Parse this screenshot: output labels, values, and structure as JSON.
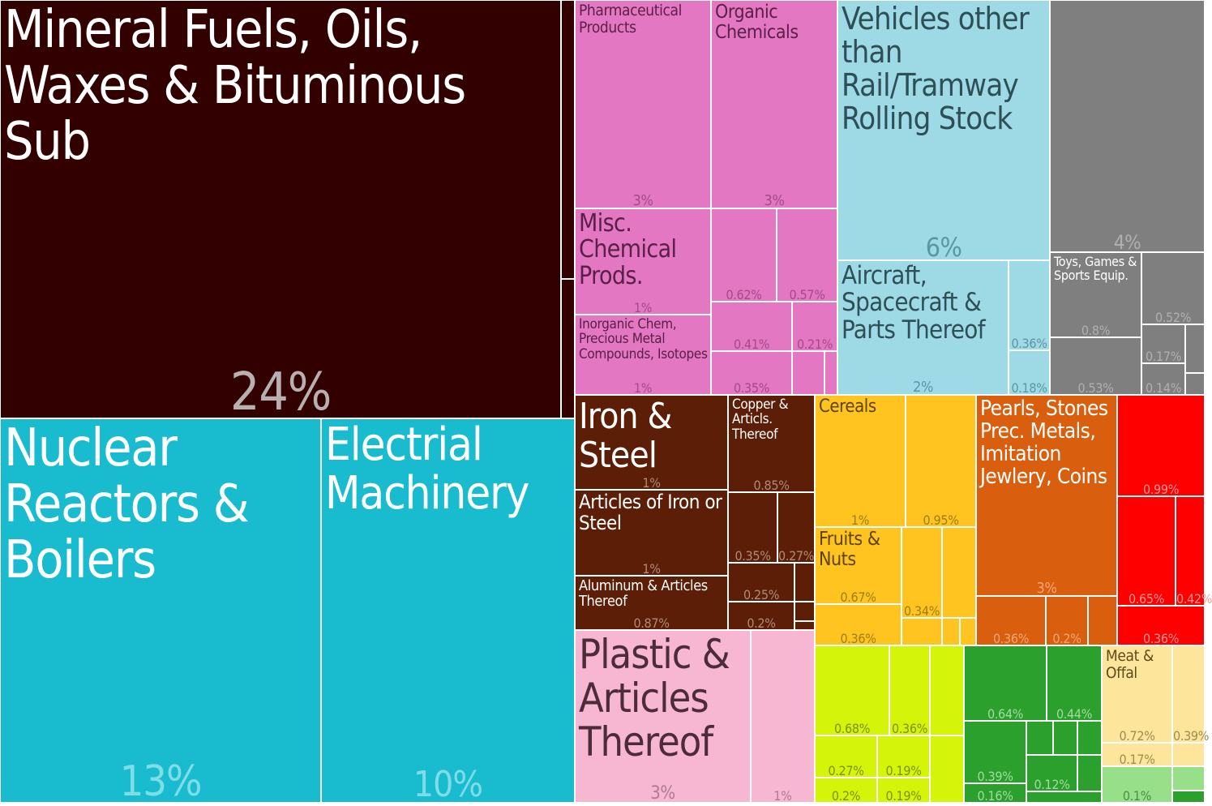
{
  "chart_data": {
    "type": "treemap",
    "cells": [
      {
        "name": "Mineral Fuels, Oils, Waxes & Bituminous Sub",
        "value": "24%",
        "color": "#330000",
        "text": "#ffffff",
        "pct": "#b8b0b0",
        "fs": 64,
        "ps": 64
      },
      {
        "name": "",
        "value": "",
        "color": "#330000",
        "text": "#ffffff",
        "pct": "#b8b0b0",
        "fs": 10,
        "ps": 10
      },
      {
        "name": "",
        "value": "",
        "color": "#330000",
        "text": "#ffffff",
        "pct": "#b8b0b0",
        "fs": 10,
        "ps": 10
      },
      {
        "name": "Nuclear Reactors & Boilers",
        "value": "13%",
        "color": "#19bccf",
        "text": "#ffffff",
        "pct": "#7fdde7",
        "fs": 64,
        "ps": 52
      },
      {
        "name": "Electrial Machinery",
        "value": "10%",
        "color": "#19bccf",
        "text": "#ffffff",
        "pct": "#7fdde7",
        "fs": 56,
        "ps": 44
      },
      {
        "name": "Pharmaceutical Products",
        "value": "3%",
        "color": "#e377c2",
        "text": "#5a2048",
        "pct": "#a34a88",
        "fs": 19,
        "ps": 18
      },
      {
        "name": "Organic Chemicals",
        "value": "3%",
        "color": "#e377c2",
        "text": "#5a2048",
        "pct": "#a34a88",
        "fs": 23,
        "ps": 18
      },
      {
        "name": "Misc. Chemical Prods.",
        "value": "1%",
        "color": "#e377c2",
        "text": "#5a2048",
        "pct": "#a34a88",
        "fs": 30,
        "ps": 16
      },
      {
        "name": "",
        "value": "0.62%",
        "color": "#e377c2",
        "text": "#5a2048",
        "pct": "#a34a88",
        "fs": 10,
        "ps": 16
      },
      {
        "name": "",
        "value": "0.57%",
        "color": "#e377c2",
        "text": "#5a2048",
        "pct": "#a34a88",
        "fs": 10,
        "ps": 16
      },
      {
        "name": "Inorganic Chem, Precious Metal Compounds, Isotopes",
        "value": "1%",
        "color": "#e377c2",
        "text": "#5a2048",
        "pct": "#a34a88",
        "fs": 17,
        "ps": 16
      },
      {
        "name": "",
        "value": "0.41%",
        "color": "#e377c2",
        "text": "#5a2048",
        "pct": "#a34a88",
        "fs": 10,
        "ps": 16
      },
      {
        "name": "",
        "value": "0.21%",
        "color": "#e377c2",
        "text": "#5a2048",
        "pct": "#a34a88",
        "fs": 10,
        "ps": 16
      },
      {
        "name": "",
        "value": "0.35%",
        "color": "#e377c2",
        "text": "#5a2048",
        "pct": "#a34a88",
        "fs": 10,
        "ps": 16
      },
      {
        "name": "",
        "value": "",
        "color": "#e377c2",
        "text": "#5a2048",
        "pct": "#a34a88",
        "fs": 10,
        "ps": 10
      },
      {
        "name": "",
        "value": "",
        "color": "#e377c2",
        "text": "#5a2048",
        "pct": "#a34a88",
        "fs": 10,
        "ps": 10
      },
      {
        "name": "Vehicles other than Rail/Tramway Rolling Stock",
        "value": "6%",
        "color": "#9edae5",
        "text": "#2e4f56",
        "pct": "#5a97a2",
        "fs": 38,
        "ps": 32
      },
      {
        "name": "Aircraft, Spacecraft & Parts Thereof",
        "value": "2%",
        "color": "#9edae5",
        "text": "#2e4f56",
        "pct": "#5a97a2",
        "fs": 31,
        "ps": 18
      },
      {
        "name": "",
        "value": "0.36%",
        "color": "#9edae5",
        "text": "#2e4f56",
        "pct": "#5a97a2",
        "fs": 10,
        "ps": 16
      },
      {
        "name": "",
        "value": "0.18%",
        "color": "#9edae5",
        "text": "#2e4f56",
        "pct": "#5a97a2",
        "fs": 10,
        "ps": 16
      },
      {
        "name": "",
        "value": "4%",
        "color": "#7f7f7f",
        "text": "#ffffff",
        "pct": "#b0b0b0",
        "fs": 10,
        "ps": 24
      },
      {
        "name": "Toys, Games & Sports Equip.",
        "value": "0.8%",
        "color": "#7f7f7f",
        "text": "#ffffff",
        "pct": "#b0b0b0",
        "fs": 16,
        "ps": 16
      },
      {
        "name": "",
        "value": "0.52%",
        "color": "#7f7f7f",
        "text": "#ffffff",
        "pct": "#b0b0b0",
        "fs": 10,
        "ps": 16
      },
      {
        "name": "",
        "value": "0.53%",
        "color": "#7f7f7f",
        "text": "#ffffff",
        "pct": "#b0b0b0",
        "fs": 10,
        "ps": 16
      },
      {
        "name": "",
        "value": "0.17%",
        "color": "#7f7f7f",
        "text": "#ffffff",
        "pct": "#b0b0b0",
        "fs": 10,
        "ps": 16
      },
      {
        "name": "",
        "value": "0.14%",
        "color": "#7f7f7f",
        "text": "#ffffff",
        "pct": "#b0b0b0",
        "fs": 10,
        "ps": 16
      },
      {
        "name": "",
        "value": "",
        "color": "#7f7f7f",
        "text": "#ffffff",
        "pct": "#b0b0b0",
        "fs": 10,
        "ps": 10
      },
      {
        "name": "",
        "value": "",
        "color": "#7f7f7f",
        "text": "#ffffff",
        "pct": "#b0b0b0",
        "fs": 10,
        "ps": 10
      },
      {
        "name": "Iron & Steel",
        "value": "1%",
        "color": "#5c1e06",
        "text": "#ffffff",
        "pct": "#b08a78",
        "fs": 44,
        "ps": 16
      },
      {
        "name": "Copper & Articls. Thereof",
        "value": "0.85%",
        "color": "#5c1e06",
        "text": "#ffffff",
        "pct": "#b08a78",
        "fs": 17,
        "ps": 16
      },
      {
        "name": "Articles of Iron or Steel",
        "value": "1%",
        "color": "#5c1e06",
        "text": "#ffffff",
        "pct": "#b08a78",
        "fs": 24,
        "ps": 16
      },
      {
        "name": "",
        "value": "0.35%",
        "color": "#5c1e06",
        "text": "#ffffff",
        "pct": "#b08a78",
        "fs": 10,
        "ps": 16
      },
      {
        "name": "",
        "value": "0.27%",
        "color": "#5c1e06",
        "text": "#ffffff",
        "pct": "#b08a78",
        "fs": 10,
        "ps": 16
      },
      {
        "name": "Aluminum & Articles Thereof",
        "value": "0.87%",
        "color": "#5c1e06",
        "text": "#ffffff",
        "pct": "#b08a78",
        "fs": 18,
        "ps": 16
      },
      {
        "name": "",
        "value": "0.25%",
        "color": "#5c1e06",
        "text": "#ffffff",
        "pct": "#b08a78",
        "fs": 10,
        "ps": 16
      },
      {
        "name": "",
        "value": "0.2%",
        "color": "#5c1e06",
        "text": "#ffffff",
        "pct": "#b08a78",
        "fs": 10,
        "ps": 16
      },
      {
        "name": "",
        "value": "",
        "color": "#5c1e06",
        "text": "#ffffff",
        "pct": "#b08a78",
        "fs": 10,
        "ps": 10
      },
      {
        "name": "",
        "value": "",
        "color": "#5c1e06",
        "text": "#ffffff",
        "pct": "#b08a78",
        "fs": 10,
        "ps": 10
      },
      {
        "name": "",
        "value": "",
        "color": "#5c1e06",
        "text": "#ffffff",
        "pct": "#b08a78",
        "fs": 10,
        "ps": 10
      },
      {
        "name": "",
        "value": "",
        "color": "#5c1e06",
        "text": "#ffffff",
        "pct": "#b08a78",
        "fs": 10,
        "ps": 10
      },
      {
        "name": "Cereals",
        "value": "1%",
        "color": "#ffc41f",
        "text": "#5c4300",
        "pct": "#a07c10",
        "fs": 22,
        "ps": 16
      },
      {
        "name": "",
        "value": "0.95%",
        "color": "#ffc41f",
        "text": "#5c4300",
        "pct": "#a07c10",
        "fs": 10,
        "ps": 16
      },
      {
        "name": "Fruits & Nuts",
        "value": "0.67%",
        "color": "#ffc41f",
        "text": "#5c4300",
        "pct": "#a07c10",
        "fs": 23,
        "ps": 16
      },
      {
        "name": "",
        "value": "0.34%",
        "color": "#ffc41f",
        "text": "#5c4300",
        "pct": "#a07c10",
        "fs": 10,
        "ps": 16
      },
      {
        "name": "",
        "value": "",
        "color": "#ffc41f",
        "text": "#5c4300",
        "pct": "#a07c10",
        "fs": 10,
        "ps": 10
      },
      {
        "name": "",
        "value": "0.36%",
        "color": "#ffc41f",
        "text": "#5c4300",
        "pct": "#a07c10",
        "fs": 10,
        "ps": 16
      },
      {
        "name": "",
        "value": "",
        "color": "#ffc41f",
        "text": "#5c4300",
        "pct": "#a07c10",
        "fs": 10,
        "ps": 10
      },
      {
        "name": "",
        "value": "",
        "color": "#ffc41f",
        "text": "#5c4300",
        "pct": "#a07c10",
        "fs": 10,
        "ps": 10
      },
      {
        "name": "",
        "value": "",
        "color": "#ffc41f",
        "text": "#5c4300",
        "pct": "#a07c10",
        "fs": 10,
        "ps": 10
      },
      {
        "name": "Pearls, Stones Prec. Metals, Imitation Jewlery, Coins",
        "value": "3%",
        "color": "#d95f0e",
        "text": "#ffffff",
        "pct": "#f0a878",
        "fs": 26,
        "ps": 18
      },
      {
        "name": "",
        "value": "0.36%",
        "color": "#d95f0e",
        "text": "#ffffff",
        "pct": "#f0a878",
        "fs": 10,
        "ps": 16
      },
      {
        "name": "",
        "value": "0.2%",
        "color": "#d95f0e",
        "text": "#ffffff",
        "pct": "#f0a878",
        "fs": 10,
        "ps": 16
      },
      {
        "name": "",
        "value": "",
        "color": "#d95f0e",
        "text": "#ffffff",
        "pct": "#f0a878",
        "fs": 10,
        "ps": 10
      },
      {
        "name": "",
        "value": "0.99%",
        "color": "#ff0000",
        "text": "#ffffff",
        "pct": "#ff9999",
        "fs": 10,
        "ps": 16
      },
      {
        "name": "",
        "value": "0.65%",
        "color": "#ff0000",
        "text": "#ffffff",
        "pct": "#ff9999",
        "fs": 10,
        "ps": 16
      },
      {
        "name": "",
        "value": "0.42%",
        "color": "#ff0000",
        "text": "#ffffff",
        "pct": "#ff9999",
        "fs": 10,
        "ps": 16
      },
      {
        "name": "",
        "value": "0.36%",
        "color": "#ff0000",
        "text": "#ffffff",
        "pct": "#ff9999",
        "fs": 10,
        "ps": 16
      },
      {
        "name": "Plastic & Articles Thereof",
        "value": "3%",
        "color": "#f7b6d2",
        "text": "#4d2c3a",
        "pct": "#b07a92",
        "fs": 50,
        "ps": 22
      },
      {
        "name": "",
        "value": "1%",
        "color": "#f7b6d2",
        "text": "#4d2c3a",
        "pct": "#b07a92",
        "fs": 10,
        "ps": 16
      },
      {
        "name": "",
        "value": "0.68%",
        "color": "#d4f50a",
        "text": "#5e6e00",
        "pct": "#7e9000",
        "fs": 10,
        "ps": 16
      },
      {
        "name": "",
        "value": "0.36%",
        "color": "#d4f50a",
        "text": "#5e6e00",
        "pct": "#7e9000",
        "fs": 10,
        "ps": 16
      },
      {
        "name": "",
        "value": "",
        "color": "#d4f50a",
        "text": "#5e6e00",
        "pct": "#7e9000",
        "fs": 10,
        "ps": 10
      },
      {
        "name": "",
        "value": "0.27%",
        "color": "#d4f50a",
        "text": "#5e6e00",
        "pct": "#7e9000",
        "fs": 10,
        "ps": 16
      },
      {
        "name": "",
        "value": "0.19%",
        "color": "#d4f50a",
        "text": "#5e6e00",
        "pct": "#7e9000",
        "fs": 10,
        "ps": 16
      },
      {
        "name": "",
        "value": "0.2%",
        "color": "#d4f50a",
        "text": "#5e6e00",
        "pct": "#7e9000",
        "fs": 10,
        "ps": 16
      },
      {
        "name": "",
        "value": "0.19%",
        "color": "#d4f50a",
        "text": "#5e6e00",
        "pct": "#7e9000",
        "fs": 10,
        "ps": 16
      },
      {
        "name": "",
        "value": "",
        "color": "#d4f50a",
        "text": "#5e6e00",
        "pct": "#7e9000",
        "fs": 10,
        "ps": 10
      },
      {
        "name": "",
        "value": "0.64%",
        "color": "#2ca02c",
        "text": "#ffffff",
        "pct": "#a0dca0",
        "fs": 10,
        "ps": 16
      },
      {
        "name": "",
        "value": "0.44%",
        "color": "#2ca02c",
        "text": "#ffffff",
        "pct": "#a0dca0",
        "fs": 10,
        "ps": 16
      },
      {
        "name": "",
        "value": "0.39%",
        "color": "#2ca02c",
        "text": "#ffffff",
        "pct": "#a0dca0",
        "fs": 10,
        "ps": 16
      },
      {
        "name": "",
        "value": "",
        "color": "#2ca02c",
        "text": "#ffffff",
        "pct": "#a0dca0",
        "fs": 10,
        "ps": 10
      },
      {
        "name": "",
        "value": "",
        "color": "#2ca02c",
        "text": "#ffffff",
        "pct": "#a0dca0",
        "fs": 10,
        "ps": 10
      },
      {
        "name": "",
        "value": "",
        "color": "#2ca02c",
        "text": "#ffffff",
        "pct": "#a0dca0",
        "fs": 10,
        "ps": 10
      },
      {
        "name": "",
        "value": "0.12%",
        "color": "#2ca02c",
        "text": "#ffffff",
        "pct": "#a0dca0",
        "fs": 10,
        "ps": 16
      },
      {
        "name": "",
        "value": "",
        "color": "#2ca02c",
        "text": "#ffffff",
        "pct": "#a0dca0",
        "fs": 10,
        "ps": 10
      },
      {
        "name": "",
        "value": "0.16%",
        "color": "#2ca02c",
        "text": "#ffffff",
        "pct": "#a0dca0",
        "fs": 10,
        "ps": 16
      },
      {
        "name": "Meat & Offal",
        "value": "0.72%",
        "color": "#fde59b",
        "text": "#5c4a1a",
        "pct": "#a08c50",
        "fs": 19,
        "ps": 16
      },
      {
        "name": "",
        "value": "0.39%",
        "color": "#fde59b",
        "text": "#5c4a1a",
        "pct": "#a08c50",
        "fs": 10,
        "ps": 16
      },
      {
        "name": "",
        "value": "0.17%",
        "color": "#fde59b",
        "text": "#5c4a1a",
        "pct": "#a08c50",
        "fs": 10,
        "ps": 16
      },
      {
        "name": "",
        "value": "",
        "color": "#fde59b",
        "text": "#5c4a1a",
        "pct": "#a08c50",
        "fs": 10,
        "ps": 10
      },
      {
        "name": "",
        "value": "0.1%",
        "color": "#98df8a",
        "text": "#2e5c26",
        "pct": "#4e8c44",
        "fs": 10,
        "ps": 16
      },
      {
        "name": "",
        "value": "",
        "color": "#98df8a",
        "text": "#2e5c26",
        "pct": "#4e8c44",
        "fs": 10,
        "ps": 10
      },
      {
        "name": "",
        "value": "",
        "color": "#2ca02c",
        "text": "#ffffff",
        "pct": "#a0dca0",
        "fs": 10,
        "ps": 10
      },
      {
        "name": "",
        "value": "",
        "color": "#2ca02c",
        "text": "#ffffff",
        "pct": "#a0dca0",
        "fs": 10,
        "ps": 10
      }
    ]
  }
}
